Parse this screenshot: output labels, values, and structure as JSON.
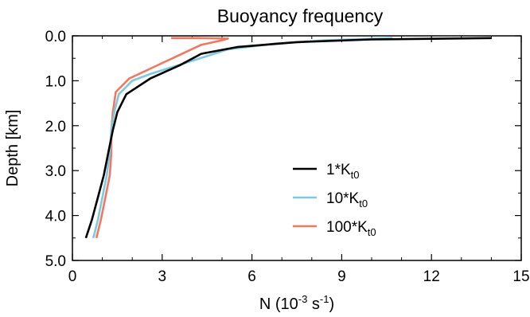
{
  "chart_data": {
    "type": "line",
    "title": "Buoyancy frequency",
    "xlabel": "N (10",
    "xlabel_exp": "-3",
    "xlabel_mid": " s",
    "xlabel_exp2": "-1",
    "xlabel_end": ")",
    "ylabel": "Depth [km]",
    "xlim": [
      0,
      15
    ],
    "ylim": [
      0,
      5
    ],
    "y_inverted": true,
    "xticks": [
      0,
      3,
      6,
      9,
      12,
      15
    ],
    "xtick_labels": [
      "0",
      "3",
      "6",
      "9",
      "12",
      "15"
    ],
    "yticks": [
      0,
      1,
      2,
      3,
      4,
      5
    ],
    "ytick_labels": [
      "0.0",
      "1.0",
      "2.0",
      "3.0",
      "4.0",
      "5.0"
    ],
    "grid": false,
    "legend_position": "center-right",
    "series": [
      {
        "name_base": "1*K",
        "name_sub": "t0",
        "color": "#000000",
        "points": [
          [
            14.0,
            0.05
          ],
          [
            10.0,
            0.08
          ],
          [
            7.5,
            0.14
          ],
          [
            5.5,
            0.25
          ],
          [
            4.3,
            0.4
          ],
          [
            3.6,
            0.65
          ],
          [
            2.6,
            0.95
          ],
          [
            1.8,
            1.3
          ],
          [
            1.5,
            1.7
          ],
          [
            1.35,
            2.1
          ],
          [
            1.2,
            2.6
          ],
          [
            1.05,
            3.1
          ],
          [
            0.85,
            3.6
          ],
          [
            0.65,
            4.1
          ],
          [
            0.45,
            4.5
          ]
        ]
      },
      {
        "name_base": "10*K",
        "name_sub": "t0",
        "color": "#7ec8e0",
        "points": [
          [
            10.7,
            0.05
          ],
          [
            8.5,
            0.1
          ],
          [
            6.8,
            0.17
          ],
          [
            5.2,
            0.3
          ],
          [
            3.8,
            0.6
          ],
          [
            2.6,
            0.85
          ],
          [
            2.0,
            1.0
          ],
          [
            1.55,
            1.3
          ],
          [
            1.4,
            1.7
          ],
          [
            1.3,
            2.1
          ],
          [
            1.25,
            2.6
          ],
          [
            1.15,
            3.1
          ],
          [
            1.0,
            3.6
          ],
          [
            0.85,
            4.1
          ],
          [
            0.7,
            4.5
          ]
        ]
      },
      {
        "name_base": "100*K",
        "name_sub": "t0",
        "color": "#f07860",
        "points": [
          [
            3.3,
            0.05
          ],
          [
            4.2,
            0.05
          ],
          [
            5.2,
            0.06
          ],
          [
            5.0,
            0.1
          ],
          [
            4.3,
            0.2
          ],
          [
            3.5,
            0.45
          ],
          [
            2.7,
            0.7
          ],
          [
            1.9,
            0.95
          ],
          [
            1.45,
            1.25
          ],
          [
            1.35,
            1.7
          ],
          [
            1.3,
            2.1
          ],
          [
            1.3,
            2.6
          ],
          [
            1.25,
            3.1
          ],
          [
            1.1,
            3.6
          ],
          [
            0.95,
            4.1
          ],
          [
            0.8,
            4.5
          ]
        ]
      }
    ]
  }
}
